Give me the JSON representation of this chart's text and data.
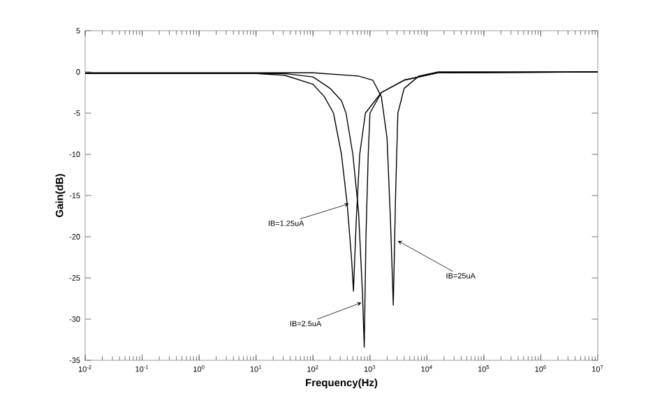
{
  "chart_data": {
    "type": "line",
    "xlabel": "Frequency(Hz)",
    "ylabel": "Gain(dB)",
    "log": "x",
    "xlim": [
      0.01,
      10000000
    ],
    "ylim": [
      -35,
      5
    ],
    "xticks": [
      {
        "value": 0.01,
        "label": "10$^{-2}$"
      },
      {
        "value": 0.1,
        "label": "10$^{-1}$"
      },
      {
        "value": 1,
        "label": "10$^{0}$"
      },
      {
        "value": 10,
        "label": "10$^{1}$"
      },
      {
        "value": 100,
        "label": "10$^{2}$"
      },
      {
        "value": 1000,
        "label": "10$^{3}$"
      },
      {
        "value": 10000,
        "label": "10$^{4}$"
      },
      {
        "value": 100000,
        "label": "10$^{5}$"
      },
      {
        "value": 1000000,
        "label": "10$^{6}$"
      },
      {
        "value": 10000000,
        "label": "10$^{7}$"
      }
    ],
    "yticks": [
      -35,
      -30,
      -25,
      -20,
      -15,
      -10,
      -5,
      0,
      5
    ],
    "series": [
      {
        "color": "#000000",
        "x": [
          0.01,
          10,
          31.6,
          100,
          158,
          229,
          316,
          398,
          479,
          513,
          575,
          661,
          832,
          1585,
          3981,
          15849,
          10000000
        ],
        "values": [
          -0.2,
          -0.2,
          -0.4,
          -1.5,
          -3,
          -5,
          -10,
          -16,
          -23,
          -26.6,
          -18,
          -10,
          -5,
          -2.5,
          -1,
          -0.1,
          0
        ]
      },
      {
        "color": "#000000",
        "x": [
          0.01,
          31.6,
          100,
          200,
          316,
          380,
          501,
          631,
          741,
          794,
          851,
          933,
          1000,
          1585,
          3981,
          15849,
          10000000
        ],
        "values": [
          -0.2,
          -0.2,
          -0.6,
          -2,
          -3.5,
          -5,
          -10,
          -17,
          -27,
          -33.4,
          -20,
          -10,
          -5,
          -2.5,
          -1,
          -0.1,
          0
        ]
      },
      {
        "color": "#000000",
        "x": [
          0.01,
          100,
          631,
          1122,
          1585,
          1995,
          2291,
          2570,
          2818,
          3090,
          3981,
          7244,
          15849,
          10000000
        ],
        "values": [
          -0.1,
          -0.1,
          -0.5,
          -1,
          -3,
          -8,
          -18,
          -28.3,
          -15,
          -5,
          -2,
          -0.5,
          0,
          0
        ]
      }
    ],
    "annotations": [
      {
        "text": "IB=1.25uA",
        "x": 427,
        "y": -16
      },
      {
        "text": "IB=2.5uA",
        "x": 708,
        "y": -28
      },
      {
        "text": "IB=25uA",
        "x": 3090,
        "y": -20.5
      }
    ]
  }
}
